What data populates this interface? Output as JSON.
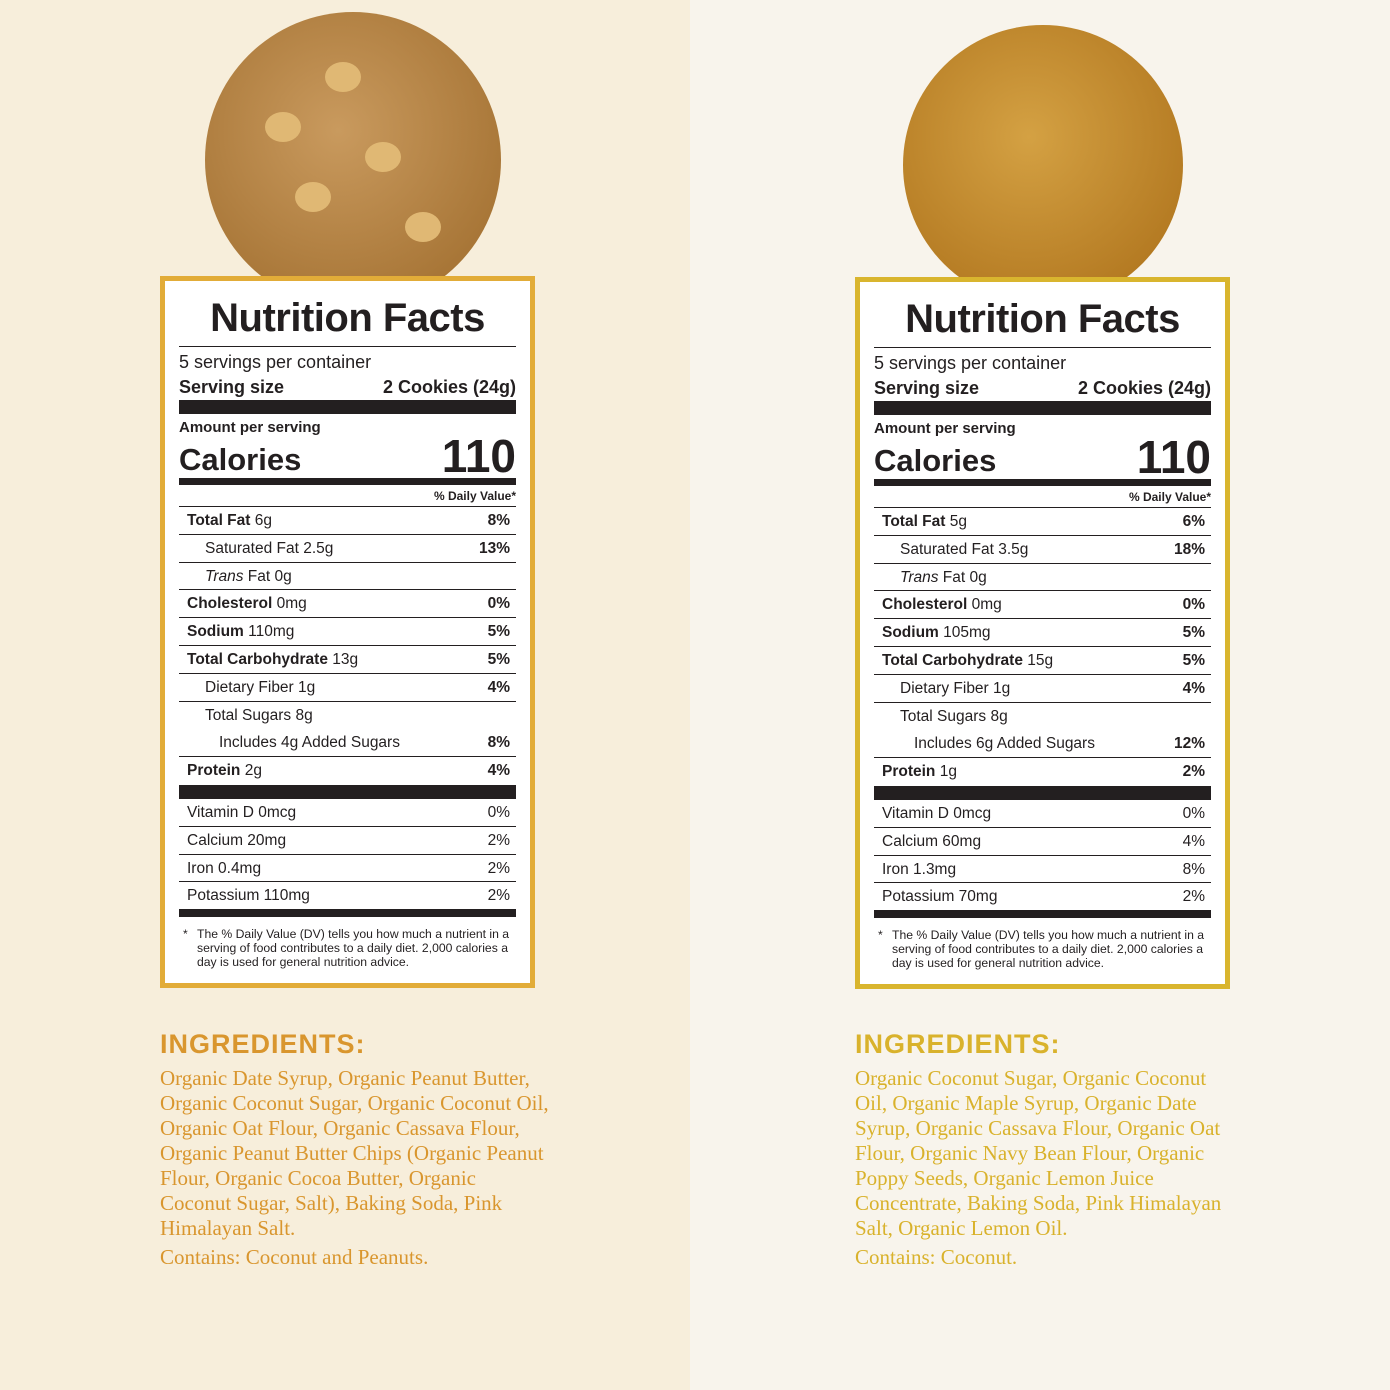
{
  "colors": {
    "left_bg": "#f7eedb",
    "right_bg": "#f8f4ec",
    "left_accent": "#d9962e",
    "right_accent": "#d9b22c",
    "label_text": "#231f20"
  },
  "products": [
    {
      "cookie_icon": "peanut-butter-chip-cookie",
      "title": "Nutrition Facts",
      "servings": "5 servings per container",
      "serving_size_label": "Serving size",
      "serving_size_value": "2 Cookies (24g)",
      "amount_label": "Amount per serving",
      "calories_label": "Calories",
      "calories_value": "110",
      "dv_label": "% Daily Value*",
      "nutrients": [
        {
          "bold": "Total Fat",
          "rest": " 6g",
          "pct": "8%",
          "indent": 0
        },
        {
          "bold": "",
          "rest": "Saturated Fat 2.5g",
          "pct": "13%",
          "indent": 1
        },
        {
          "bold": "",
          "italic": "Trans",
          "rest": " Fat 0g",
          "pct": "",
          "indent": 1
        },
        {
          "bold": "Cholesterol",
          "rest": " 0mg",
          "pct": "0%",
          "indent": 0
        },
        {
          "bold": "Sodium",
          "rest": " 110mg",
          "pct": "5%",
          "indent": 0
        },
        {
          "bold": "Total Carbohydrate",
          "rest": " 13g",
          "pct": "5%",
          "indent": 0
        },
        {
          "bold": "",
          "rest": "Dietary Fiber 1g",
          "pct": "4%",
          "indent": 1
        },
        {
          "bold": "",
          "rest": "Total Sugars 8g",
          "pct": "",
          "indent": 1,
          "noline": true
        },
        {
          "bold": "",
          "rest": "Includes 4g Added Sugars",
          "pct": "8%",
          "indent": 2
        },
        {
          "bold": "Protein",
          "rest": " 2g",
          "pct": "4%",
          "indent": 0,
          "noline": true
        }
      ],
      "vitamins": [
        {
          "name": "Vitamin D 0mcg",
          "pct": "0%"
        },
        {
          "name": "Calcium 20mg",
          "pct": "2%"
        },
        {
          "name": "Iron 0.4mg",
          "pct": "2%"
        },
        {
          "name": "Potassium 110mg",
          "pct": "2%"
        }
      ],
      "footnote": "The % Daily Value (DV) tells you how much a nutrient in a serving of food contributes to a daily diet. 2,000 calories a day is used for general nutrition advice.",
      "ingredients_heading": "INGREDIENTS:",
      "ingredients": "Organic Date Syrup, Organic Peanut Butter, Organic Coconut Sugar, Organic Coconut Oil, Organic Oat Flour, Organic Cassava Flour, Organic Peanut Butter Chips (Organic Peanut Flour, Organic Cocoa Butter, Organic Coconut Sugar, Salt), Baking Soda, Pink Himalayan Salt.",
      "contains": "Contains: Coconut and Peanuts."
    },
    {
      "cookie_icon": "lemon-poppy-seed-cookie",
      "title": "Nutrition Facts",
      "servings": "5 servings per container",
      "serving_size_label": "Serving size",
      "serving_size_value": "2 Cookies (24g)",
      "amount_label": "Amount per serving",
      "calories_label": "Calories",
      "calories_value": "110",
      "dv_label": "% Daily Value*",
      "nutrients": [
        {
          "bold": "Total Fat",
          "rest": " 5g",
          "pct": "6%",
          "indent": 0
        },
        {
          "bold": "",
          "rest": "Saturated Fat 3.5g",
          "pct": "18%",
          "indent": 1
        },
        {
          "bold": "",
          "italic": "Trans",
          "rest": " Fat 0g",
          "pct": "",
          "indent": 1
        },
        {
          "bold": "Cholesterol",
          "rest": " 0mg",
          "pct": "0%",
          "indent": 0
        },
        {
          "bold": "Sodium",
          "rest": " 105mg",
          "pct": "5%",
          "indent": 0
        },
        {
          "bold": "Total Carbohydrate",
          "rest": " 15g",
          "pct": "5%",
          "indent": 0
        },
        {
          "bold": "",
          "rest": "Dietary Fiber 1g",
          "pct": "4%",
          "indent": 1
        },
        {
          "bold": "",
          "rest": "Total Sugars 8g",
          "pct": "",
          "indent": 1,
          "noline": true
        },
        {
          "bold": "",
          "rest": "Includes 6g Added Sugars",
          "pct": "12%",
          "indent": 2
        },
        {
          "bold": "Protein",
          "rest": " 1g",
          "pct": "2%",
          "indent": 0,
          "noline": true
        }
      ],
      "vitamins": [
        {
          "name": "Vitamin D 0mcg",
          "pct": "0%"
        },
        {
          "name": "Calcium 60mg",
          "pct": "4%"
        },
        {
          "name": "Iron 1.3mg",
          "pct": "8%"
        },
        {
          "name": "Potassium 70mg",
          "pct": "2%"
        }
      ],
      "footnote": "The % Daily Value (DV) tells you how much a nutrient in a serving of food contributes to a daily diet. 2,000 calories a day is used for general nutrition advice.",
      "ingredients_heading": "INGREDIENTS:",
      "ingredients": "Organic Coconut Sugar, Organic Coconut Oil, Organic Maple Syrup, Organic Date Syrup, Organic Cassava Flour, Organic Oat Flour, Organic Navy Bean Flour, Organic Poppy Seeds, Organic Lemon Juice Concentrate, Baking Soda, Pink Himalayan Salt, Organic Lemon Oil.",
      "contains": "Contains: Coconut."
    }
  ]
}
